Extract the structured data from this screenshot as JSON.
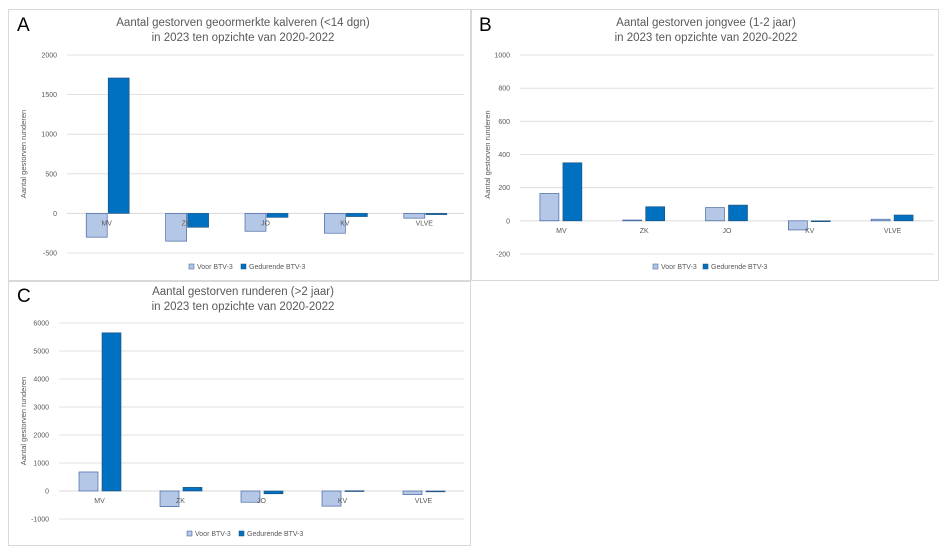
{
  "panels": [
    {
      "id": "panel-a",
      "letter": "A"
    },
    {
      "id": "panel-b",
      "letter": "B"
    },
    {
      "id": "panel-c",
      "letter": "C"
    }
  ],
  "colors": {
    "voor": "#b4c7e7",
    "voor_border": "#2f5597",
    "gedurende": "#0070c0",
    "gedurende_border": "#1f4e79",
    "text": "#595959",
    "gridline": "#d9d9d9"
  },
  "chart_data": [
    {
      "type": "bar",
      "title": [
        "Aantal gestorven geoormerkte kalveren (<14 dgn)",
        "in 2023 ten opzichte van 2020-2022"
      ],
      "ylabel": "Aantal gestorven runderen",
      "xlabel": "",
      "categories": [
        "MV",
        "ZK",
        "JO",
        "KV",
        "VLVE"
      ],
      "ylim": [
        -500,
        2000
      ],
      "yticks": [
        -500,
        0,
        500,
        1000,
        1500,
        2000
      ],
      "grid": true,
      "legend": "bottom",
      "series": [
        {
          "name": "Voor BTV-3",
          "values": [
            -300,
            -350,
            -225,
            -250,
            -60
          ]
        },
        {
          "name": "Gedurende BTV-3",
          "values": [
            1710,
            -175,
            -50,
            -40,
            -15
          ]
        }
      ]
    },
    {
      "type": "bar",
      "title": [
        "Aantal gestorven jongvee (1-2 jaar)",
        "in 2023 ten opzichte van 2020-2022"
      ],
      "ylabel": "Aantal gestorven runderen",
      "xlabel": "",
      "categories": [
        "MV",
        "ZK",
        "JO",
        "KV",
        "VLVE"
      ],
      "ylim": [
        -200,
        1000
      ],
      "yticks": [
        -200,
        0,
        200,
        400,
        600,
        800,
        1000
      ],
      "grid": true,
      "legend": "bottom",
      "series": [
        {
          "name": "Voor BTV-3",
          "values": [
            165,
            5,
            80,
            -55,
            10
          ]
        },
        {
          "name": "Gedurende BTV-3",
          "values": [
            350,
            85,
            95,
            -5,
            35
          ]
        }
      ]
    },
    {
      "type": "bar",
      "title": [
        "Aantal gestorven runderen (>2 jaar)",
        "in 2023 ten opzichte van 2020-2022"
      ],
      "ylabel": "Aantal gestorven runderen",
      "xlabel": "",
      "categories": [
        "MV",
        "ZK",
        "JO",
        "KV",
        "VLVE"
      ],
      "ylim": [
        -1000,
        6000
      ],
      "yticks": [
        -1000,
        0,
        1000,
        2000,
        3000,
        4000,
        5000,
        6000
      ],
      "grid": true,
      "legend": "bottom",
      "series": [
        {
          "name": "Voor BTV-3",
          "values": [
            680,
            -560,
            -400,
            -540,
            -130
          ]
        },
        {
          "name": "Gedurende BTV-3",
          "values": [
            5650,
            130,
            -100,
            10,
            -30
          ]
        }
      ]
    }
  ]
}
